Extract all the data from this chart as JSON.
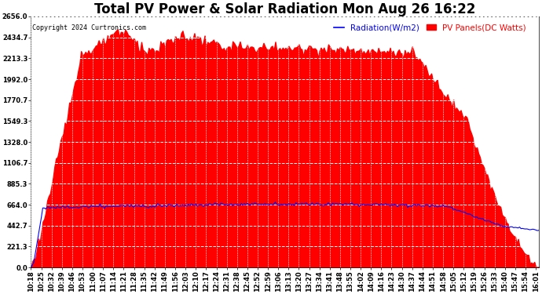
{
  "title": "Total PV Power & Solar Radiation Mon Aug 26 16:22",
  "copyright": "Copyright 2024 Curtronics.com",
  "legend_radiation": "Radiation(W/m2)",
  "legend_pv": "PV Panels(DC Watts)",
  "ymin": 0.0,
  "ymax": 2656.0,
  "yticks": [
    0.0,
    221.3,
    442.7,
    664.0,
    885.3,
    1106.7,
    1328.0,
    1549.3,
    1770.7,
    1992.0,
    2213.3,
    2434.7,
    2656.0
  ],
  "bg_color": "#ffffff",
  "plot_bg_color": "#ffffff",
  "red_fill_color": "#ff0000",
  "blue_line_color": "#0000ff",
  "grid_color": "#cccccc",
  "grid_linestyle": "--",
  "title_fontsize": 12,
  "tick_fontsize": 6.0,
  "legend_fontsize": 7.5,
  "n_points": 346
}
